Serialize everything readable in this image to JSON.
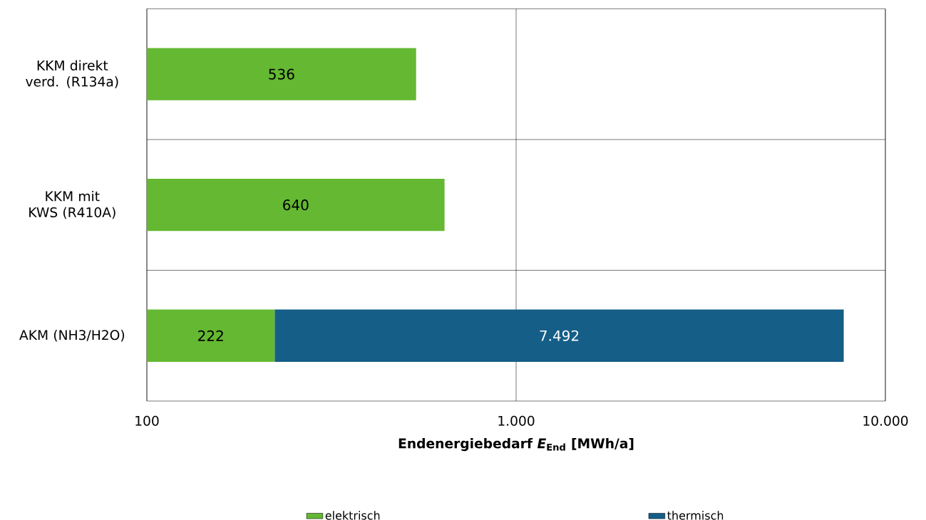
{
  "chart_data": {
    "type": "bar",
    "orientation": "horizontal",
    "stacked": true,
    "log": "x",
    "xlabel": "Endenergiebedarf *E*$_{End}$  [MWh/a]",
    "categories": [
      "KKM direkt verd. (R134a)",
      "KKM mit KWS (R410A)",
      "AKM (NH3/H2O)"
    ],
    "series": [
      {
        "name": "elektrisch",
        "color": "#64b832",
        "values": [
          536,
          640,
          222
        ],
        "value_labels": [
          "536",
          "640",
          "222"
        ]
      },
      {
        "name": "thermisch",
        "color": "#155e87",
        "values": [
          null,
          null,
          7492
        ],
        "value_labels": [
          null,
          null,
          "7.492"
        ]
      }
    ],
    "xlim": [
      100,
      10000
    ],
    "xticks": [
      {
        "value": 100,
        "label": "100"
      },
      {
        "value": 1000,
        "label": "1.000"
      },
      {
        "value": 10000,
        "label": "10.000"
      }
    ],
    "grid": "x",
    "legend": "bottom"
  }
}
